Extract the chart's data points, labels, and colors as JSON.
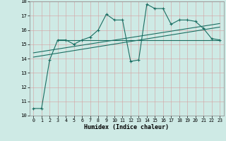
{
  "xlabel": "Humidex (Indice chaleur)",
  "xlim": [
    -0.5,
    23.5
  ],
  "ylim": [
    10,
    18
  ],
  "xticks": [
    0,
    1,
    2,
    3,
    4,
    5,
    6,
    7,
    8,
    9,
    10,
    11,
    12,
    13,
    14,
    15,
    16,
    17,
    18,
    19,
    20,
    21,
    22,
    23
  ],
  "yticks": [
    10,
    11,
    12,
    13,
    14,
    15,
    16,
    17,
    18
  ],
  "bg_color": "#ceeae5",
  "line_color": "#1a6e62",
  "series1_x": [
    0,
    1,
    2,
    3,
    4,
    5,
    6,
    7,
    8,
    9,
    10,
    11,
    12,
    13,
    14,
    15,
    16,
    17,
    18,
    19,
    20,
    21,
    22,
    23
  ],
  "series1_y": [
    10.5,
    10.5,
    13.9,
    15.3,
    15.3,
    15.0,
    15.3,
    15.5,
    16.0,
    17.1,
    16.7,
    16.7,
    13.8,
    13.9,
    17.8,
    17.5,
    17.5,
    16.4,
    16.7,
    16.7,
    16.6,
    16.1,
    15.4,
    15.3
  ],
  "series2_x": [
    3,
    4,
    5,
    6,
    7,
    8,
    9,
    10,
    11,
    12,
    13,
    14,
    15,
    16,
    17,
    18,
    19,
    20,
    21,
    22,
    23
  ],
  "series2_y": [
    15.3,
    15.3,
    15.3,
    15.3,
    15.3,
    15.3,
    15.3,
    15.3,
    15.3,
    15.3,
    15.3,
    15.3,
    15.3,
    15.3,
    15.3,
    15.3,
    15.3,
    15.3,
    15.3,
    15.3,
    15.3
  ],
  "series3_x": [
    0,
    23
  ],
  "series3_y": [
    14.1,
    16.2
  ],
  "series4_x": [
    0,
    23
  ],
  "series4_y": [
    14.4,
    16.45
  ]
}
